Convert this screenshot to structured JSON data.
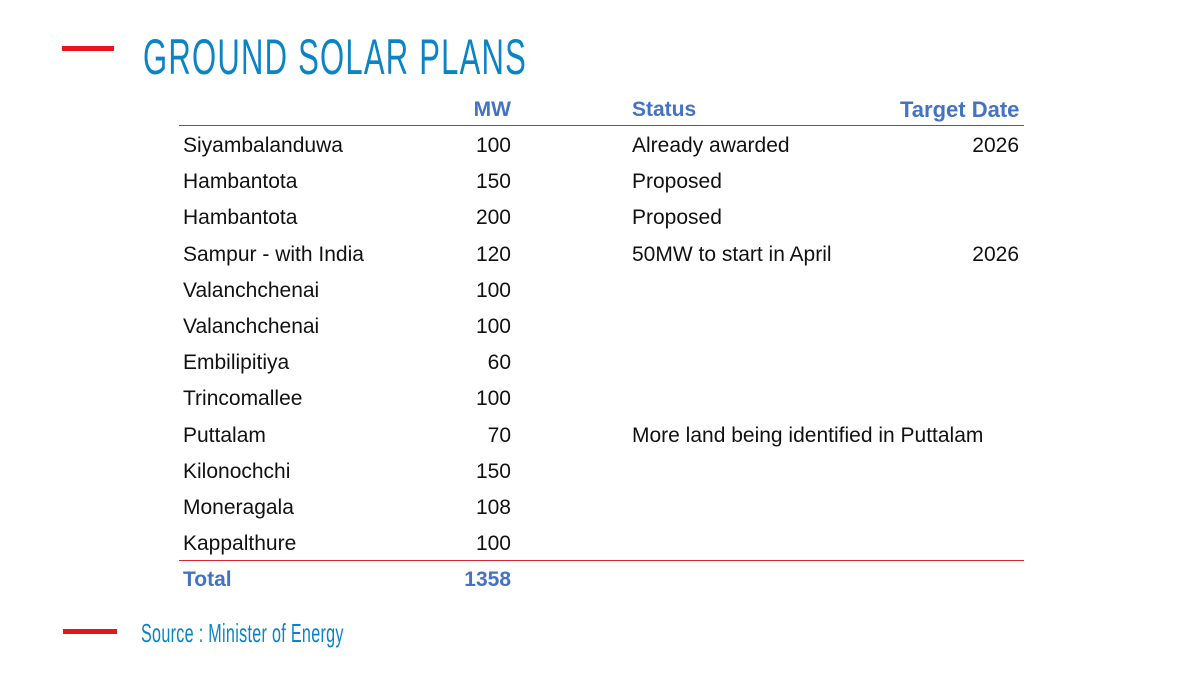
{
  "title": "GROUND SOLAR PLANS",
  "source": "Source : Minister of Energy",
  "colors": {
    "accent_red": "#e8141b",
    "title_blue": "#0b84c6",
    "header_blue": "#4472c4"
  },
  "table": {
    "headers": {
      "name": "",
      "mw": "MW",
      "status": "Status",
      "target_date": "Target Date"
    },
    "rows": [
      {
        "name": "Siyambalanduwa",
        "mw": "100",
        "status": "Already awarded",
        "target_date": "2026"
      },
      {
        "name": "Hambantota",
        "mw": "150",
        "status": "Proposed",
        "target_date": ""
      },
      {
        "name": "Hambantota",
        "mw": "200",
        "status": "Proposed",
        "target_date": ""
      },
      {
        "name": "Sampur - with India",
        "mw": "120",
        "status": "50MW to start in April",
        "target_date": "2026"
      },
      {
        "name": "Valanchchenai",
        "mw": "100",
        "status": "",
        "target_date": ""
      },
      {
        "name": "Valanchchenai",
        "mw": "100",
        "status": "",
        "target_date": ""
      },
      {
        "name": "Embilipitiya",
        "mw": "60",
        "status": "",
        "target_date": ""
      },
      {
        "name": "Trincomallee",
        "mw": "100",
        "status": "",
        "target_date": ""
      },
      {
        "name": "Puttalam",
        "mw": "70",
        "status": "More land being identified in Puttalam",
        "target_date": ""
      },
      {
        "name": "Kilonochchi",
        "mw": "150",
        "status": "",
        "target_date": ""
      },
      {
        "name": "Moneragala",
        "mw": "108",
        "status": "",
        "target_date": ""
      },
      {
        "name": "Kappalthure",
        "mw": "100",
        "status": "",
        "target_date": ""
      }
    ],
    "total": {
      "label": "Total",
      "mw": "1358"
    }
  }
}
